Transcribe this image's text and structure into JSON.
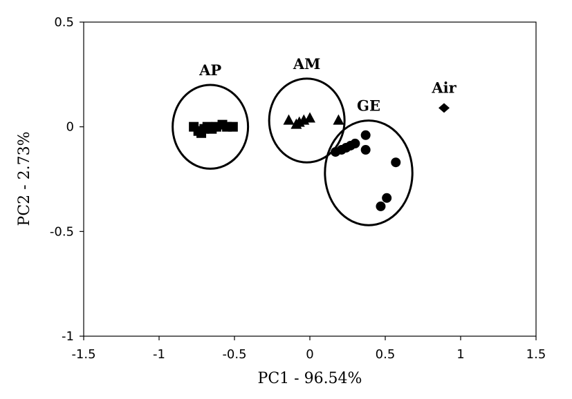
{
  "chart_data": {
    "type": "scatter",
    "title": "",
    "xlabel": "PC1 - 96.54%",
    "ylabel": "PC2 - 2.73%",
    "xlim": [
      -1.5,
      1.5
    ],
    "ylim": [
      -1,
      0.5
    ],
    "x_ticks": [
      -1.5,
      -1,
      -0.5,
      0,
      0.5,
      1,
      1.5
    ],
    "x_tick_labels": [
      "-1.5",
      "-1",
      "-0.5",
      "0",
      "0.5",
      "1",
      "1.5"
    ],
    "y_ticks": [
      0.5,
      0,
      -0.5,
      -1
    ],
    "y_tick_labels": [
      "0.5",
      "0",
      "-0.5",
      "-1"
    ],
    "grid": false,
    "series": [
      {
        "name": "AP",
        "marker": "square",
        "color": "#000000",
        "points": [
          {
            "x": -0.77,
            "y": 0.0
          },
          {
            "x": -0.74,
            "y": -0.02
          },
          {
            "x": -0.72,
            "y": -0.03
          },
          {
            "x": -0.7,
            "y": -0.01
          },
          {
            "x": -0.68,
            "y": 0.0
          },
          {
            "x": -0.65,
            "y": -0.01
          },
          {
            "x": -0.62,
            "y": 0.0
          },
          {
            "x": -0.58,
            "y": 0.01
          },
          {
            "x": -0.55,
            "y": 0.0
          },
          {
            "x": -0.51,
            "y": 0.0
          }
        ]
      },
      {
        "name": "AM",
        "marker": "triangle",
        "color": "#000000",
        "points": [
          {
            "x": -0.14,
            "y": 0.03
          },
          {
            "x": -0.09,
            "y": 0.01
          },
          {
            "x": -0.07,
            "y": 0.02
          },
          {
            "x": -0.04,
            "y": 0.03
          },
          {
            "x": 0.0,
            "y": 0.04
          },
          {
            "x": 0.19,
            "y": 0.03
          }
        ]
      },
      {
        "name": "GE",
        "marker": "circle",
        "color": "#000000",
        "points": [
          {
            "x": 0.17,
            "y": -0.12
          },
          {
            "x": 0.21,
            "y": -0.11
          },
          {
            "x": 0.24,
            "y": -0.1
          },
          {
            "x": 0.27,
            "y": -0.09
          },
          {
            "x": 0.3,
            "y": -0.08
          },
          {
            "x": 0.37,
            "y": -0.04
          },
          {
            "x": 0.37,
            "y": -0.11
          },
          {
            "x": 0.57,
            "y": -0.17
          },
          {
            "x": 0.51,
            "y": -0.34
          },
          {
            "x": 0.47,
            "y": -0.38
          }
        ]
      },
      {
        "name": "Air",
        "marker": "diamond",
        "color": "#000000",
        "points": [
          {
            "x": 0.89,
            "y": 0.09
          }
        ]
      }
    ],
    "groups": [
      {
        "label": "AP",
        "cx": -0.66,
        "cy": 0.0,
        "rx": 0.25,
        "ry": 0.2
      },
      {
        "label": "AM",
        "cx": -0.02,
        "cy": 0.03,
        "rx": 0.25,
        "ry": 0.2
      },
      {
        "label": "GE",
        "cx": 0.39,
        "cy": -0.22,
        "rx": 0.29,
        "ry": 0.25
      },
      {
        "label": "Air",
        "cx": null,
        "cy": null,
        "rx": null,
        "ry": null
      }
    ]
  }
}
